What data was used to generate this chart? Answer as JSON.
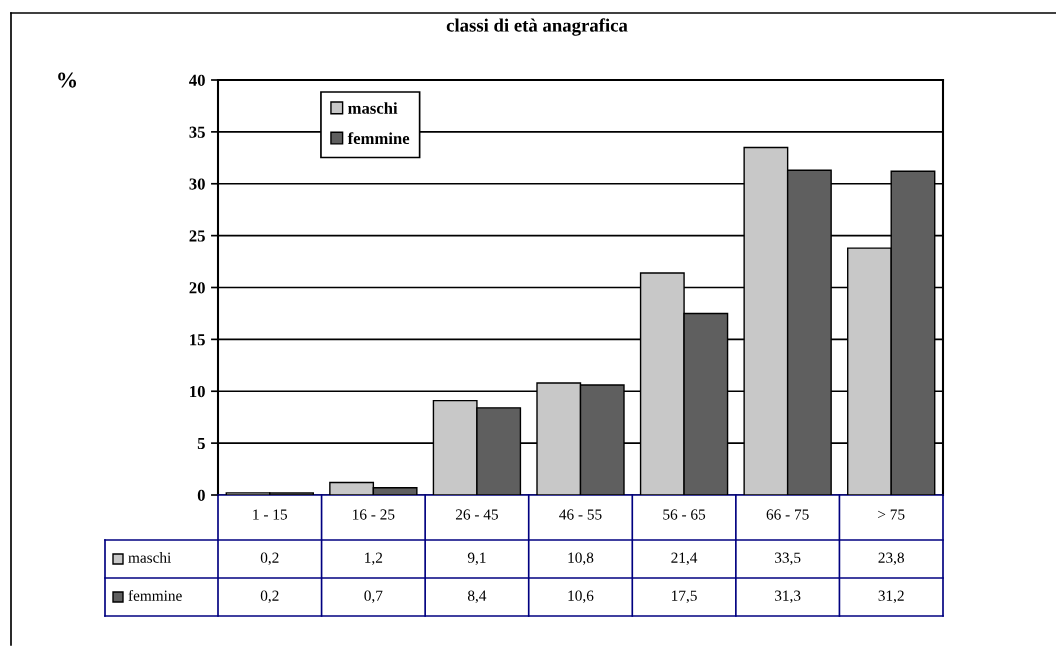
{
  "chart_data": {
    "type": "bar",
    "title": "classi di età anagrafica",
    "annotations": [
      "%"
    ],
    "categories": [
      "1 - 15",
      "16 - 25",
      "26 - 45",
      "46 - 55",
      "56 - 65",
      "66 - 75",
      "> 75"
    ],
    "series": [
      {
        "name": "maschi",
        "color": "#c8c8c8",
        "values": [
          0.2,
          1.2,
          9.1,
          10.8,
          21.4,
          33.5,
          23.8
        ],
        "value_labels": [
          "0,2",
          "1,2",
          "9,1",
          "10,8",
          "21,4",
          "33,5",
          "23,8"
        ]
      },
      {
        "name": "femmine",
        "color": "#5f5f5f",
        "values": [
          0.2,
          0.7,
          8.4,
          10.6,
          17.5,
          31.3,
          31.2
        ],
        "value_labels": [
          "0,2",
          "0,7",
          "8,4",
          "10,6",
          "17,5",
          "31,3",
          "31,2"
        ]
      }
    ],
    "ylim": [
      0,
      40
    ],
    "yticks": [
      0,
      5,
      10,
      15,
      20,
      25,
      30,
      35,
      40
    ],
    "grid": "y",
    "legend": "top left"
  }
}
